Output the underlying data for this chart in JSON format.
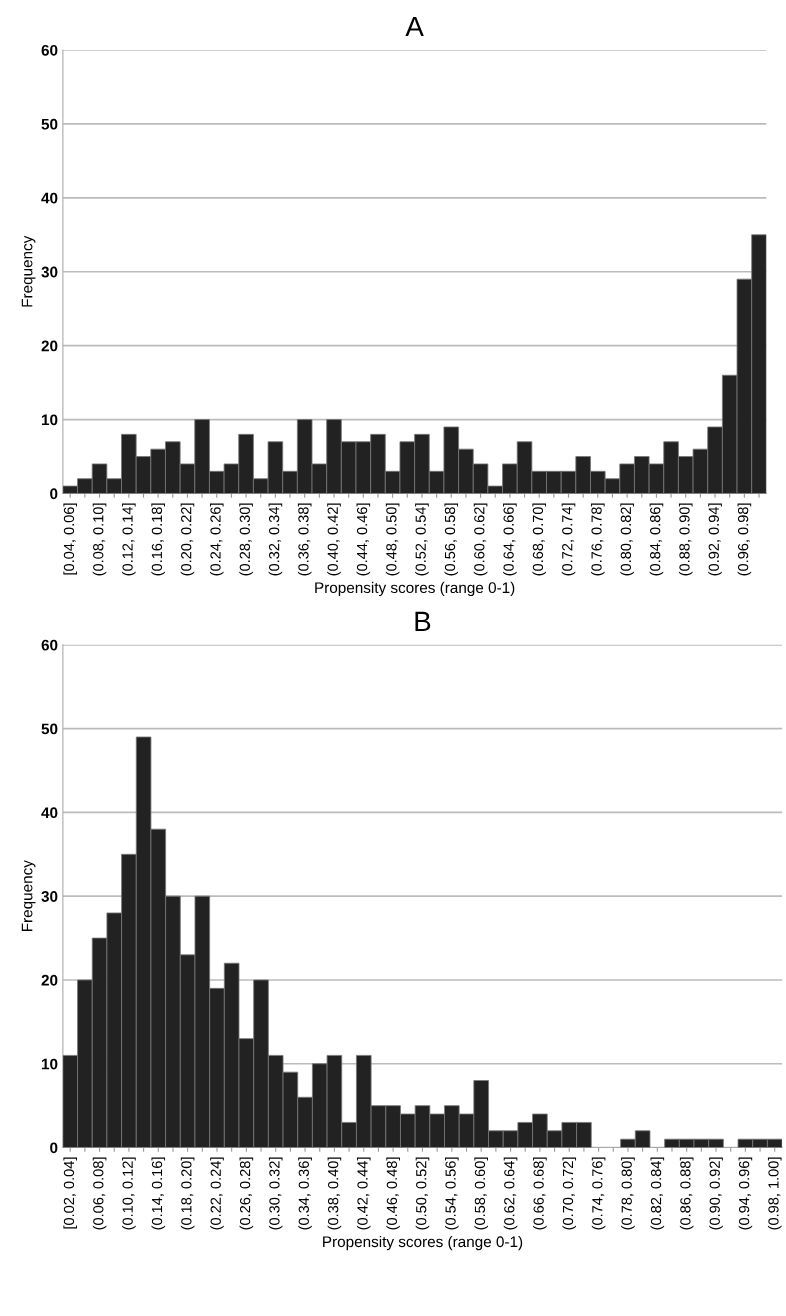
{
  "chart_data": [
    {
      "type": "bar",
      "title": "A",
      "xlabel": "Propensity scores (range 0-1)",
      "ylabel": "Frequency",
      "categories": [
        "[0.04, 0.06]",
        null,
        "(0.08, 0.10]",
        null,
        "(0.12, 0.14]",
        null,
        "(0.16, 0.18]",
        null,
        "(0.20, 0.22]",
        null,
        "(0.24, 0.26]",
        null,
        "(0.28, 0.30]",
        null,
        "(0.32, 0.34]",
        null,
        "(0.36, 0.38]",
        null,
        "(0.40, 0.42]",
        null,
        "(0.44, 0.46]",
        null,
        "(0.48, 0.50]",
        null,
        "(0.52, 0.54]",
        null,
        "(0.56, 0.58]",
        null,
        "(0.60, 0.62]",
        null,
        "(0.64, 0.66]",
        null,
        "(0.68, 0.70]",
        null,
        "(0.72, 0.74]",
        null,
        "(0.76, 0.78]",
        null,
        "(0.80, 0.82]",
        null,
        "(0.84, 0.86]",
        null,
        "(0.88, 0.90]",
        null,
        "(0.92, 0.94]",
        null,
        "(0.96, 0.98]",
        null
      ],
      "values": [
        1,
        2,
        4,
        2,
        8,
        5,
        6,
        7,
        4,
        10,
        3,
        4,
        8,
        2,
        7,
        3,
        10,
        4,
        10,
        7,
        7,
        8,
        3,
        7,
        8,
        3,
        9,
        6,
        4,
        1,
        4,
        7,
        3,
        3,
        3,
        5,
        3,
        2,
        4,
        5,
        4,
        7,
        5,
        6,
        9,
        16,
        29,
        35
      ],
      "color": "#222222",
      "ylim": [
        0,
        60
      ],
      "yticks": [
        0,
        10,
        20,
        30,
        40,
        50,
        60
      ],
      "grid": "y"
    },
    {
      "type": "bar",
      "title": "B",
      "xlabel": "Propensity scores (range 0-1)",
      "ylabel": "Frequency",
      "categories": [
        "[0.02, 0.04]",
        null,
        "(0.06, 0.08]",
        null,
        "(0.10, 0.12]",
        null,
        "(0.14, 0.16]",
        null,
        "(0.18, 0.20]",
        null,
        "(0.22, 0.24]",
        null,
        "(0.26, 0.28]",
        null,
        "(0.30, 0.32]",
        null,
        "(0.34, 0.36]",
        null,
        "(0.38, 0.40]",
        null,
        "(0.42, 0.44]",
        null,
        "(0.46, 0.48]",
        null,
        "(0.50, 0.52]",
        null,
        "(0.54, 0.56]",
        null,
        "(0.58, 0.60]",
        null,
        "(0.62, 0.64]",
        null,
        "(0.66, 0.68]",
        null,
        "(0.70, 0.72]",
        null,
        "(0.74, 0.76]",
        null,
        "(0.78, 0.80]",
        null,
        "(0.82, 0.84]",
        null,
        "(0.86, 0.88]",
        null,
        "(0.90, 0.92]",
        null,
        "(0.94, 0.96]",
        null,
        "(0.98, 1.00]"
      ],
      "values": [
        11,
        20,
        25,
        28,
        35,
        49,
        38,
        30,
        23,
        30,
        19,
        22,
        13,
        20,
        11,
        9,
        6,
        10,
        11,
        3,
        11,
        5,
        5,
        4,
        5,
        4,
        5,
        4,
        8,
        2,
        2,
        3,
        4,
        2,
        3,
        3,
        0,
        0,
        1,
        2,
        0,
        1,
        1,
        1,
        1,
        0,
        1,
        1,
        1
      ],
      "color": "#222222",
      "ylim": [
        0,
        60
      ],
      "yticks": [
        0,
        10,
        20,
        30,
        40,
        50,
        60
      ],
      "grid": "y"
    }
  ]
}
